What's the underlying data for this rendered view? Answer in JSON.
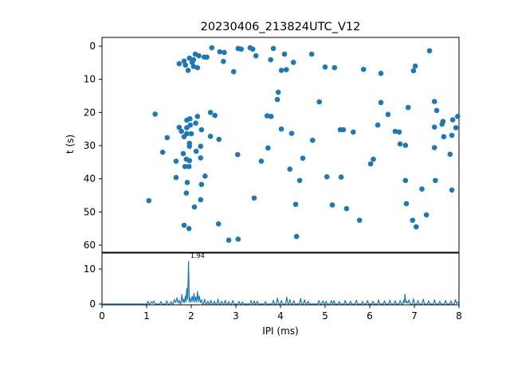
{
  "title": "20230406_213824UTC_V12",
  "chart_data": [
    {
      "type": "scatter",
      "title": "20230406_213824UTC_V12",
      "xlabel": "",
      "ylabel": "t (s)",
      "xlim": [
        0,
        8
      ],
      "ylim": [
        62,
        -2.6
      ],
      "y_inverted": true,
      "grid": false,
      "yticks": [
        0,
        10,
        20,
        30,
        40,
        50,
        60
      ],
      "marker_color": "#1f77b4",
      "points": [
        [
          2.46,
          0.5
        ],
        [
          3.32,
          0.5
        ],
        [
          3.05,
          0.7
        ],
        [
          3.84,
          0.7
        ],
        [
          3.12,
          0.9
        ],
        [
          3.38,
          0.9
        ],
        [
          7.34,
          1.4
        ],
        [
          2.64,
          1.7
        ],
        [
          2.74,
          1.9
        ],
        [
          2.09,
          2.4
        ],
        [
          4.09,
          2.4
        ],
        [
          4.7,
          2.4
        ],
        [
          2.17,
          2.9
        ],
        [
          3.45,
          2.9
        ],
        [
          2.29,
          3.3
        ],
        [
          2.35,
          3.3
        ],
        [
          1.96,
          3.6
        ],
        [
          2.05,
          4.1
        ],
        [
          3.78,
          4.1
        ],
        [
          1.84,
          4.5
        ],
        [
          2.72,
          4.6
        ],
        [
          2.02,
          4.9
        ],
        [
          4.29,
          4.9
        ],
        [
          1.73,
          5.3
        ],
        [
          1.87,
          5.7
        ],
        [
          7.02,
          6.0
        ],
        [
          2.05,
          6.1
        ],
        [
          5.0,
          6.3
        ],
        [
          2.14,
          6.5
        ],
        [
          5.21,
          6.5
        ],
        [
          5.86,
          7.0
        ],
        [
          4.13,
          7.1
        ],
        [
          1.93,
          7.3
        ],
        [
          4.02,
          7.3
        ],
        [
          6.98,
          7.4
        ],
        [
          2.95,
          7.7
        ],
        [
          6.25,
          8.2
        ],
        [
          3.95,
          13.9
        ],
        [
          3.93,
          16.1
        ],
        [
          4.87,
          16.8
        ],
        [
          7.45,
          16.7
        ],
        [
          6.25,
          17.0
        ],
        [
          6.86,
          18.5
        ],
        [
          7.5,
          19.4
        ],
        [
          1.19,
          20.5
        ],
        [
          2.43,
          20.0
        ],
        [
          2.53,
          20.9
        ],
        [
          2.14,
          21.2
        ],
        [
          3.7,
          21.0
        ],
        [
          3.79,
          21.2
        ],
        [
          6.41,
          20.6
        ],
        [
          7.97,
          21.2
        ],
        [
          1.97,
          21.9
        ],
        [
          1.9,
          22.3
        ],
        [
          7.86,
          22.2
        ],
        [
          7.64,
          22.7
        ],
        [
          2.1,
          23.2
        ],
        [
          1.98,
          23.8
        ],
        [
          6.18,
          23.8
        ],
        [
          7.62,
          23.5
        ],
        [
          1.73,
          24.5
        ],
        [
          1.9,
          24.6
        ],
        [
          7.45,
          24.4
        ],
        [
          7.93,
          24.6
        ],
        [
          4.02,
          25.0
        ],
        [
          2.23,
          25.2
        ],
        [
          5.34,
          25.2
        ],
        [
          5.41,
          25.2
        ],
        [
          1.78,
          25.7
        ],
        [
          6.57,
          25.7
        ],
        [
          5.63,
          25.9
        ],
        [
          6.66,
          25.9
        ],
        [
          1.9,
          26.4
        ],
        [
          2.0,
          26.4
        ],
        [
          4.25,
          26.3
        ],
        [
          7.84,
          26.9
        ],
        [
          1.46,
          27.6
        ],
        [
          1.84,
          27.3
        ],
        [
          2.43,
          27.2
        ],
        [
          7.66,
          27.3
        ],
        [
          2.62,
          28.1
        ],
        [
          4.72,
          28.4
        ],
        [
          1.96,
          29.3
        ],
        [
          6.68,
          29.5
        ],
        [
          6.8,
          29.9
        ],
        [
          1.96,
          30.2
        ],
        [
          2.21,
          30.2
        ],
        [
          3.72,
          30.7
        ],
        [
          7.45,
          30.6
        ],
        [
          2.11,
          31.7
        ],
        [
          1.36,
          32.0
        ],
        [
          1.82,
          32.4
        ],
        [
          7.8,
          32.6
        ],
        [
          3.04,
          32.7
        ],
        [
          2.21,
          33.7
        ],
        [
          4.5,
          33.8
        ],
        [
          1.89,
          34.1
        ],
        [
          6.08,
          34.1
        ],
        [
          1.96,
          34.5
        ],
        [
          1.66,
          34.7
        ],
        [
          3.57,
          34.7
        ],
        [
          6.02,
          35.5
        ],
        [
          1.86,
          36.3
        ],
        [
          1.95,
          36.3
        ],
        [
          4.21,
          37.1
        ],
        [
          5.04,
          39.4
        ],
        [
          5.36,
          39.5
        ],
        [
          1.66,
          39.6
        ],
        [
          2.31,
          39.2
        ],
        [
          4.43,
          40.5
        ],
        [
          6.8,
          40.5
        ],
        [
          7.47,
          40.5
        ],
        [
          1.91,
          41.1
        ],
        [
          2.23,
          41.7
        ],
        [
          7.17,
          43.1
        ],
        [
          7.84,
          43.4
        ],
        [
          1.89,
          44.3
        ],
        [
          3.41,
          45.8
        ],
        [
          2.21,
          46.3
        ],
        [
          1.05,
          46.6
        ],
        [
          6.82,
          47.5
        ],
        [
          4.34,
          47.7
        ],
        [
          5.16,
          47.9
        ],
        [
          2.07,
          48.5
        ],
        [
          5.48,
          49.0
        ],
        [
          7.27,
          50.9
        ],
        [
          5.77,
          52.5
        ],
        [
          6.96,
          52.5
        ],
        [
          1.84,
          54.0
        ],
        [
          2.61,
          53.6
        ],
        [
          7.04,
          54.5
        ],
        [
          1.95,
          55.0
        ],
        [
          4.36,
          57.4
        ],
        [
          3.05,
          58.2
        ],
        [
          2.84,
          58.5
        ]
      ]
    },
    {
      "type": "line",
      "xlabel": "IPI (ms)",
      "ylabel": "",
      "xlim": [
        0,
        8
      ],
      "ylim": [
        0,
        14.5
      ],
      "grid": false,
      "xticks": [
        0,
        1,
        2,
        3,
        4,
        5,
        6,
        7,
        8
      ],
      "yticks": [
        0,
        10
      ],
      "line_color": "#1f77b4",
      "annotation": {
        "text": "1.94",
        "x": 1.94,
        "y": 12.2
      },
      "spikes": [
        [
          1.03,
          0.8
        ],
        [
          1.1,
          0.6
        ],
        [
          1.16,
          0.9
        ],
        [
          1.32,
          0.7
        ],
        [
          1.45,
          0.9
        ],
        [
          1.55,
          0.7
        ],
        [
          1.62,
          1.3
        ],
        [
          1.68,
          1.8
        ],
        [
          1.73,
          1.0
        ],
        [
          1.79,
          2.7
        ],
        [
          1.83,
          1.4
        ],
        [
          1.87,
          2.3
        ],
        [
          1.9,
          4.5
        ],
        [
          1.94,
          12.2
        ],
        [
          1.97,
          1.8
        ],
        [
          2.02,
          2.2
        ],
        [
          2.06,
          3.1
        ],
        [
          2.1,
          2.0
        ],
        [
          2.14,
          3.6
        ],
        [
          2.18,
          2.3
        ],
        [
          2.23,
          1.2
        ],
        [
          2.3,
          1.4
        ],
        [
          2.37,
          0.8
        ],
        [
          2.44,
          1.1
        ],
        [
          2.52,
          0.8
        ],
        [
          2.6,
          1.4
        ],
        [
          2.68,
          0.8
        ],
        [
          2.76,
          1.1
        ],
        [
          2.84,
          0.7
        ],
        [
          2.93,
          1.0
        ],
        [
          3.07,
          0.8
        ],
        [
          3.15,
          0.6
        ],
        [
          3.34,
          1.0
        ],
        [
          3.41,
          0.9
        ],
        [
          3.48,
          0.8
        ],
        [
          3.66,
          0.7
        ],
        [
          3.84,
          1.1
        ],
        [
          3.93,
          1.7
        ],
        [
          4.02,
          1.0
        ],
        [
          4.14,
          2.0
        ],
        [
          4.21,
          1.3
        ],
        [
          4.3,
          1.0
        ],
        [
          4.45,
          1.6
        ],
        [
          4.54,
          1.2
        ],
        [
          4.62,
          0.8
        ],
        [
          4.86,
          1.0
        ],
        [
          4.95,
          0.9
        ],
        [
          5.02,
          0.8
        ],
        [
          5.14,
          1.0
        ],
        [
          5.2,
          1.0
        ],
        [
          5.32,
          0.7
        ],
        [
          5.45,
          1.0
        ],
        [
          5.57,
          0.8
        ],
        [
          5.7,
          1.1
        ],
        [
          5.84,
          0.7
        ],
        [
          5.95,
          1.0
        ],
        [
          6.07,
          0.8
        ],
        [
          6.2,
          1.2
        ],
        [
          6.33,
          0.9
        ],
        [
          6.45,
          1.1
        ],
        [
          6.57,
          0.9
        ],
        [
          6.68,
          1.0
        ],
        [
          6.76,
          1.1
        ],
        [
          6.79,
          2.8
        ],
        [
          6.83,
          0.8
        ],
        [
          6.88,
          1.2
        ],
        [
          6.98,
          1.5
        ],
        [
          7.08,
          1.0
        ],
        [
          7.2,
          1.4
        ],
        [
          7.32,
          0.9
        ],
        [
          7.45,
          1.2
        ],
        [
          7.57,
          0.8
        ],
        [
          7.7,
          1.0
        ],
        [
          7.82,
          0.9
        ],
        [
          7.92,
          1.3
        ],
        [
          7.97,
          0.5
        ]
      ]
    }
  ]
}
